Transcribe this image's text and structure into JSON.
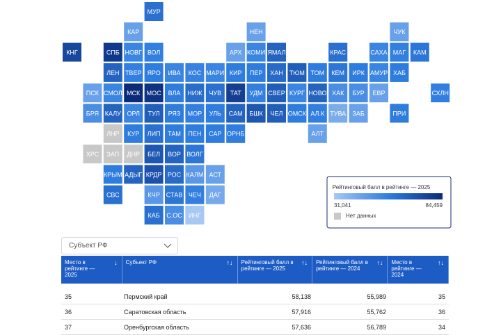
{
  "map": {
    "tiles": [
      {
        "label": "МУР",
        "col": 4,
        "row": 0,
        "value": 62000
      },
      {
        "label": "КАР",
        "col": 3,
        "row": 1,
        "value": 45000
      },
      {
        "label": "НЕН",
        "col": 9,
        "row": 1,
        "value": 45000
      },
      {
        "label": "ЧУК",
        "col": 16,
        "row": 1,
        "value": 45000
      },
      {
        "label": "КНГ",
        "col": 0,
        "row": 2,
        "value": 75000
      },
      {
        "label": "СПБ",
        "col": 2,
        "row": 2,
        "value": 80000
      },
      {
        "label": "НОВГ",
        "col": 3,
        "row": 2,
        "value": 55000
      },
      {
        "label": "ВОЛ",
        "col": 4,
        "row": 2,
        "value": 57000
      },
      {
        "label": "АРХ",
        "col": 8,
        "row": 2,
        "value": 45000
      },
      {
        "label": "КОМИ",
        "col": 9,
        "row": 2,
        "value": 55000
      },
      {
        "label": "ЯМАЛ",
        "col": 10,
        "row": 2,
        "value": 66000
      },
      {
        "label": "КРАС",
        "col": 13,
        "row": 2,
        "value": 62000
      },
      {
        "label": "САХА",
        "col": 15,
        "row": 2,
        "value": 55000
      },
      {
        "label": "МАГ",
        "col": 16,
        "row": 2,
        "value": 57000
      },
      {
        "label": "КАМ",
        "col": 17,
        "row": 2,
        "value": 60000
      },
      {
        "label": "ЛЕН",
        "col": 2,
        "row": 3,
        "value": 66000
      },
      {
        "label": "ТВЕР",
        "col": 3,
        "row": 3,
        "value": 57000
      },
      {
        "label": "ЯРО",
        "col": 4,
        "row": 3,
        "value": 58000
      },
      {
        "label": "ИВА",
        "col": 5,
        "row": 3,
        "value": 55000
      },
      {
        "label": "КОС",
        "col": 6,
        "row": 3,
        "value": 56000
      },
      {
        "label": "МАРИ",
        "col": 7,
        "row": 3,
        "value": 55000
      },
      {
        "label": "КИР",
        "col": 8,
        "row": 3,
        "value": 58000
      },
      {
        "label": "ПЕР",
        "col": 9,
        "row": 3,
        "value": 58138
      },
      {
        "label": "ХАН",
        "col": 10,
        "row": 3,
        "value": 64000
      },
      {
        "label": "ТЮМ",
        "col": 11,
        "row": 3,
        "value": 68000
      },
      {
        "label": "ТОМ",
        "col": 12,
        "row": 3,
        "value": 58000
      },
      {
        "label": "КЕМ",
        "col": 13,
        "row": 3,
        "value": 60000
      },
      {
        "label": "ИРК",
        "col": 14,
        "row": 3,
        "value": 58000
      },
      {
        "label": "АМУР",
        "col": 15,
        "row": 3,
        "value": 55000
      },
      {
        "label": "ХАБ",
        "col": 16,
        "row": 3,
        "value": 58000
      },
      {
        "label": "ПСК",
        "col": 1,
        "row": 4,
        "value": 45000
      },
      {
        "label": "СМОЛ",
        "col": 2,
        "row": 4,
        "value": 55000
      },
      {
        "label": "МСК",
        "col": 3,
        "row": 4,
        "value": 84459
      },
      {
        "label": "МОС",
        "col": 4,
        "row": 4,
        "value": 82000
      },
      {
        "label": "ВЛА",
        "col": 5,
        "row": 4,
        "value": 58000
      },
      {
        "label": "НИЖ",
        "col": 6,
        "row": 4,
        "value": 63000
      },
      {
        "label": "ЧУВ",
        "col": 7,
        "row": 4,
        "value": 62000
      },
      {
        "label": "ТАТ",
        "col": 8,
        "row": 4,
        "value": 78000
      },
      {
        "label": "УДМ",
        "col": 9,
        "row": 4,
        "value": 57000
      },
      {
        "label": "СВЕР",
        "col": 10,
        "row": 4,
        "value": 68000
      },
      {
        "label": "КУРГ",
        "col": 11,
        "row": 4,
        "value": 55000
      },
      {
        "label": "НОВО",
        "col": 12,
        "row": 4,
        "value": 66000
      },
      {
        "label": "ХАК",
        "col": 13,
        "row": 4,
        "value": 52000
      },
      {
        "label": "БУР",
        "col": 14,
        "row": 4,
        "value": 52000
      },
      {
        "label": "ЕВР",
        "col": 15,
        "row": 4,
        "value": 45000
      },
      {
        "label": "СХЛН",
        "col": 18,
        "row": 4,
        "value": 57000
      },
      {
        "label": "БРЯ",
        "col": 1,
        "row": 5,
        "value": 52000
      },
      {
        "label": "КАЛУ",
        "col": 2,
        "row": 5,
        "value": 66000
      },
      {
        "label": "ОРЛ",
        "col": 3,
        "row": 5,
        "value": 55000
      },
      {
        "label": "ТУЛ",
        "col": 4,
        "row": 5,
        "value": 68000
      },
      {
        "label": "РЯЗ",
        "col": 5,
        "row": 5,
        "value": 58000
      },
      {
        "label": "МОР",
        "col": 6,
        "row": 5,
        "value": 57000
      },
      {
        "label": "УЛЬ",
        "col": 7,
        "row": 5,
        "value": 58000
      },
      {
        "label": "САМ",
        "col": 8,
        "row": 5,
        "value": 66000
      },
      {
        "label": "БШК",
        "col": 9,
        "row": 5,
        "value": 70000
      },
      {
        "label": "ЧЕЛ",
        "col": 10,
        "row": 5,
        "value": 68000
      },
      {
        "label": "ОМСК",
        "col": 11,
        "row": 5,
        "value": 58000
      },
      {
        "label": "АЛ.К",
        "col": 12,
        "row": 5,
        "value": 57000
      },
      {
        "label": "ТУВА",
        "col": 13,
        "row": 5,
        "value": 41000
      },
      {
        "label": "ЗАБ",
        "col": 14,
        "row": 5,
        "value": 45000
      },
      {
        "label": "ПРИ",
        "col": 16,
        "row": 5,
        "value": 58000
      },
      {
        "label": "ЛНР",
        "col": 2,
        "row": 6,
        "value": null
      },
      {
        "label": "КУР",
        "col": 3,
        "row": 6,
        "value": 58000
      },
      {
        "label": "ЛИП",
        "col": 4,
        "row": 6,
        "value": 62000
      },
      {
        "label": "ТАМ",
        "col": 5,
        "row": 6,
        "value": 58000
      },
      {
        "label": "ПЕН",
        "col": 6,
        "row": 6,
        "value": 58000
      },
      {
        "label": "САР",
        "col": 7,
        "row": 6,
        "value": 57916
      },
      {
        "label": "ОРНБ",
        "col": 8,
        "row": 6,
        "value": 57636
      },
      {
        "label": "АЛТ",
        "col": 12,
        "row": 6,
        "value": 45000
      },
      {
        "label": "ХРС",
        "col": 1,
        "row": 7,
        "value": null
      },
      {
        "label": "ЗАП",
        "col": 2,
        "row": 7,
        "value": null
      },
      {
        "label": "ДНР",
        "col": 3,
        "row": 7,
        "value": null
      },
      {
        "label": "БЕЛ",
        "col": 4,
        "row": 7,
        "value": 70000
      },
      {
        "label": "ВОР",
        "col": 5,
        "row": 7,
        "value": 66000
      },
      {
        "label": "ВОЛГ",
        "col": 6,
        "row": 7,
        "value": 60000
      },
      {
        "label": "КРЫМ",
        "col": 2,
        "row": 8,
        "value": 58000
      },
      {
        "label": "АДЫГ",
        "col": 3,
        "row": 8,
        "value": 66000
      },
      {
        "label": "КРДР",
        "col": 4,
        "row": 8,
        "value": 72000
      },
      {
        "label": "РОС",
        "col": 5,
        "row": 8,
        "value": 64000
      },
      {
        "label": "КАЛМ",
        "col": 6,
        "row": 8,
        "value": 48000
      },
      {
        "label": "АСТ",
        "col": 7,
        "row": 8,
        "value": 45000
      },
      {
        "label": "СВС",
        "col": 2,
        "row": 9,
        "value": 62000
      },
      {
        "label": "КЧР",
        "col": 4,
        "row": 9,
        "value": 48000
      },
      {
        "label": "СТАВ",
        "col": 5,
        "row": 9,
        "value": 60000
      },
      {
        "label": "ЧЕЧ",
        "col": 6,
        "row": 9,
        "value": 57000
      },
      {
        "label": "ДАГ",
        "col": 7,
        "row": 9,
        "value": 42000
      },
      {
        "label": "КАБ",
        "col": 4,
        "row": 10,
        "value": 62000
      },
      {
        "label": "С.ОС",
        "col": 5,
        "row": 10,
        "value": 52000
      },
      {
        "label": "ИНГ",
        "col": 6,
        "row": 10,
        "value": 31041
      }
    ],
    "color_scale": [
      "#a6c8f3",
      "#2f7de0",
      "#0b2b7a"
    ],
    "no_data_color": "#c8c8c8",
    "legend": {
      "title": "Рейтинговый балл в рейтинге — 2025",
      "min": {
        "value": 31041,
        "label": "31,041"
      },
      "max": {
        "value": 84459,
        "label": "84,459"
      },
      "no_data": "Нет данных"
    }
  },
  "filter": {
    "label": "Субъект РФ"
  },
  "table": {
    "headers": [
      "Место в рейтинге — 2025",
      "Субъект РФ",
      "Рейтинговый балл в рейтинге — 2025",
      "Рейтинговый балл в рейтинге — 2024",
      "Место в рейтинге — 2024"
    ],
    "rows": [
      [
        35,
        "Пермский край",
        "58,138",
        "55,989",
        35
      ],
      [
        36,
        "Саратовская область",
        "57,916",
        "55,762",
        36
      ],
      [
        37,
        "Оренбургская область",
        "57,636",
        "56,789",
        34
      ]
    ]
  }
}
